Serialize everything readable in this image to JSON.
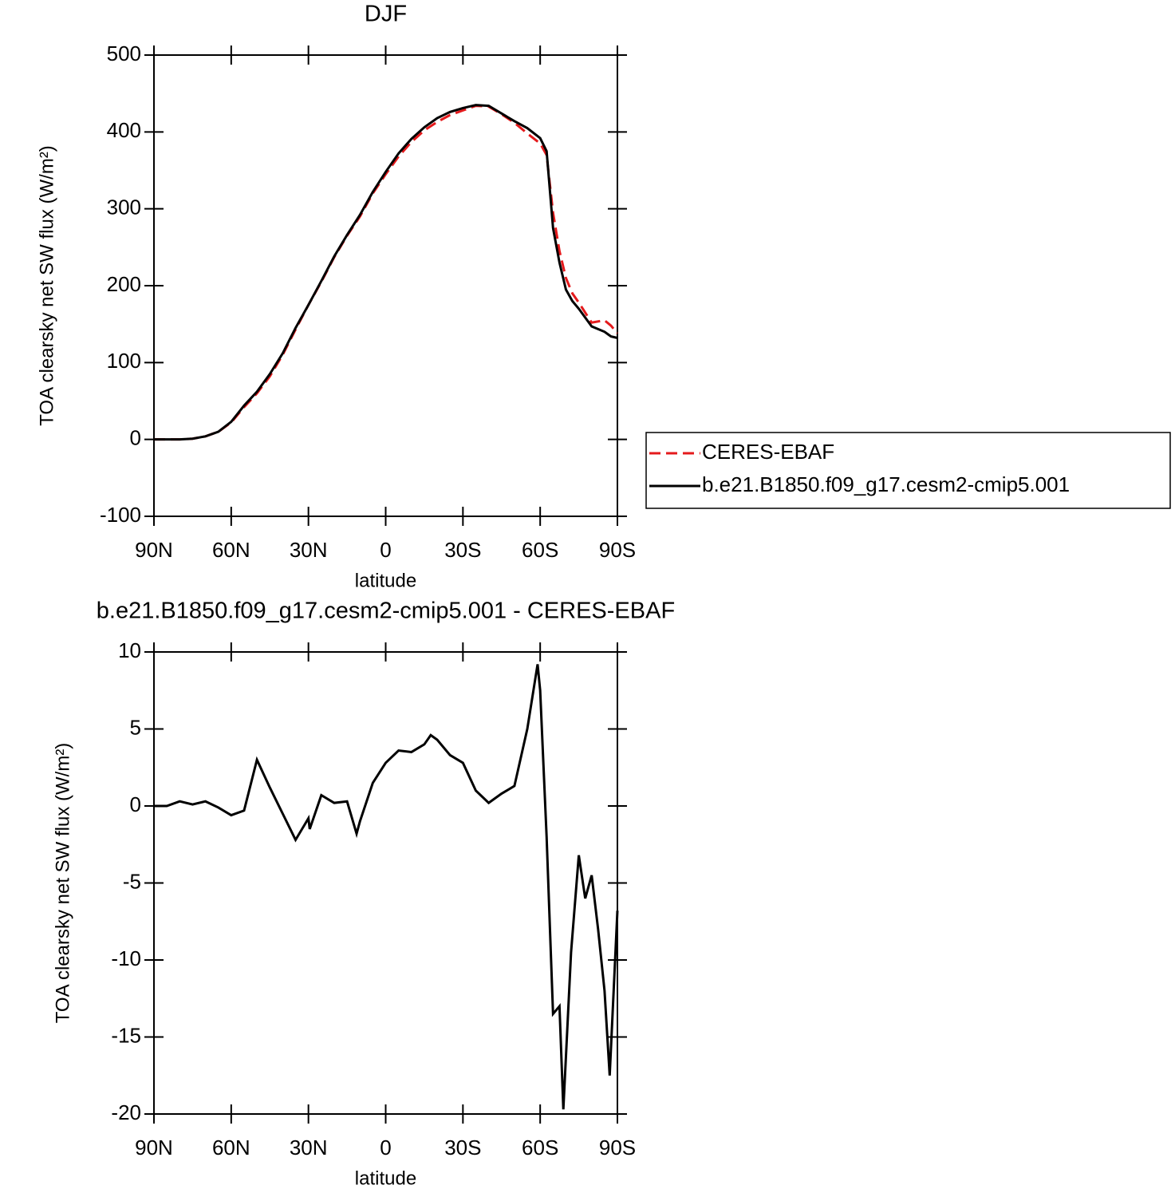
{
  "chart_data": [
    {
      "type": "line",
      "title": "DJF",
      "xlabel": "latitude",
      "ylabel": "TOA clearsky net SW flux (W/m²)",
      "x": [
        90,
        85,
        80,
        75,
        70,
        65,
        60,
        55,
        50,
        45,
        40,
        35,
        30,
        25,
        20,
        15,
        10,
        5,
        0,
        -5,
        -10,
        -15,
        -20,
        -25,
        -30,
        -35,
        -40,
        -45,
        -50,
        -55,
        -60,
        -62.5,
        -65,
        -67.5,
        -70,
        -72.5,
        -75,
        -80,
        -85,
        -87.5,
        -90
      ],
      "series": [
        {
          "name": "CERES-EBAF",
          "color": "#e41a1c",
          "line_style": "dashed",
          "values": [
            0,
            0,
            0,
            1,
            4,
            10,
            22,
            42,
            60,
            82,
            110,
            143,
            175,
            205,
            237,
            265,
            290,
            320,
            345,
            368,
            387,
            402,
            413,
            422,
            428,
            434,
            433,
            423,
            412,
            398,
            385,
            370,
            295,
            245,
            210,
            190,
            178,
            152,
            155,
            148,
            138
          ]
        },
        {
          "name": "b.e21.B1850.f09_g17.cesm2-cmip5.001",
          "color": "#000000",
          "line_style": "solid",
          "values": [
            0,
            0,
            0,
            1,
            4,
            10,
            23,
            44,
            62,
            85,
            112,
            145,
            175,
            206,
            238,
            266,
            292,
            322,
            348,
            372,
            391,
            406,
            418,
            426,
            431,
            435,
            434,
            424,
            414,
            405,
            392,
            375,
            275,
            230,
            195,
            180,
            170,
            147,
            140,
            134,
            132
          ]
        }
      ],
      "xlim": [
        90,
        -90
      ],
      "ylim": [
        -100,
        500
      ],
      "xticks": [
        {
          "value": 90,
          "label": "90N"
        },
        {
          "value": 60,
          "label": "60N"
        },
        {
          "value": 30,
          "label": "30N"
        },
        0,
        {
          "value": -30,
          "label": "30S"
        },
        {
          "value": -60,
          "label": "60S"
        },
        {
          "value": -90,
          "label": "90S"
        }
      ],
      "yticks": [
        -100,
        0,
        100,
        200,
        300,
        400,
        500
      ],
      "legend": "outside-right"
    },
    {
      "type": "line",
      "title": "b.e21.B1850.f09_g17.cesm2-cmip5.001 - CERES-EBAF",
      "xlabel": "latitude",
      "ylabel": "TOA clearsky net SW flux (W/m²)",
      "x": [
        90,
        85,
        80,
        75,
        70,
        65,
        60,
        55,
        50,
        45,
        40,
        35,
        30,
        29.5,
        25,
        20,
        15,
        11.3,
        10,
        5,
        0,
        -5,
        -10,
        -15,
        -17.5,
        -20,
        -25,
        -30,
        -35,
        -40,
        -45,
        -50,
        -55,
        -59,
        -60,
        -62.5,
        -65,
        -67.5,
        -69,
        -72,
        -75,
        -77.5,
        -80,
        -82.5,
        -85,
        -87,
        -90
      ],
      "series": [
        {
          "color": "#000000",
          "line_style": "solid",
          "values": [
            0,
            0,
            0.3,
            0.1,
            0.3,
            -0.1,
            -0.6,
            -0.3,
            3.0,
            1.2,
            -0.5,
            -2.2,
            -0.8,
            -1.5,
            0.7,
            0.2,
            0.3,
            -1.8,
            -1.0,
            1.5,
            2.8,
            3.6,
            3.5,
            4.0,
            4.6,
            4.3,
            3.3,
            2.8,
            1.0,
            0.2,
            0.8,
            1.3,
            5.0,
            9.2,
            7.5,
            -2,
            -13.5,
            -13,
            -19.7,
            -9.5,
            -3.2,
            -6,
            -4.5,
            -8,
            -12,
            -17.5,
            -6.8
          ]
        }
      ],
      "xlim": [
        90,
        -90
      ],
      "ylim": [
        -20,
        10
      ],
      "xticks": [
        {
          "value": 90,
          "label": "90N"
        },
        {
          "value": 60,
          "label": "60N"
        },
        {
          "value": 30,
          "label": "30N"
        },
        0,
        {
          "value": -30,
          "label": "30S"
        },
        {
          "value": -60,
          "label": "60S"
        },
        {
          "value": -90,
          "label": "90S"
        }
      ],
      "yticks": [
        -20,
        -15,
        -10,
        -5,
        0,
        5,
        10
      ]
    }
  ]
}
